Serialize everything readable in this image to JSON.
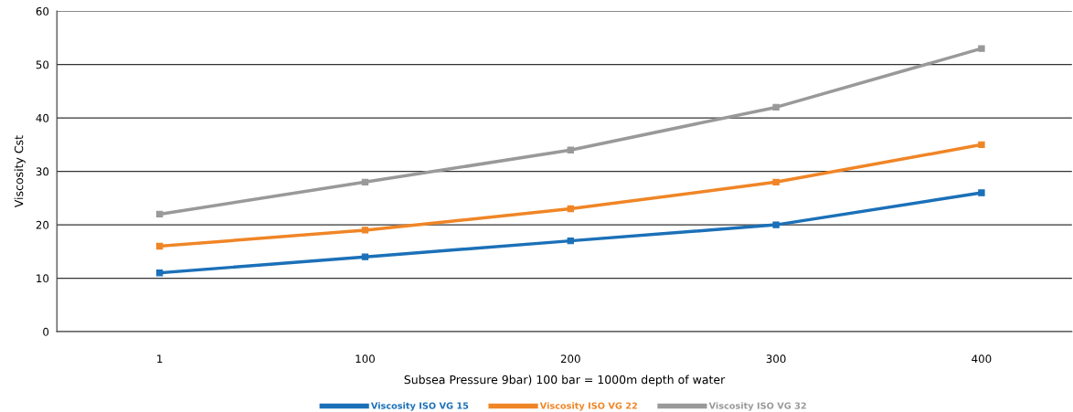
{
  "chart_data": {
    "type": "line",
    "xlabel": "Subsea Pressure 9bar) 100 bar = 1000m depth of water",
    "ylabel": "Viscosity Cst",
    "categories": [
      "1",
      "100",
      "200",
      "300",
      "400"
    ],
    "series": [
      {
        "name": "Viscosity ISO VG 15",
        "color": "#1b70b8",
        "values": [
          11,
          14,
          17,
          20,
          26
        ]
      },
      {
        "name": "Viscosity ISO VG 22",
        "color": "#f08526",
        "values": [
          16,
          19,
          23,
          28,
          35
        ]
      },
      {
        "name": "Viscosity ISO VG 32",
        "color": "#999999",
        "values": [
          22,
          28,
          34,
          42,
          53
        ]
      }
    ],
    "ylim": [
      0,
      60
    ],
    "yticks": [
      0,
      10,
      20,
      30,
      40,
      50,
      60
    ],
    "grid": "y",
    "legend": "bottom",
    "marker": "square",
    "line_style": "solid"
  }
}
